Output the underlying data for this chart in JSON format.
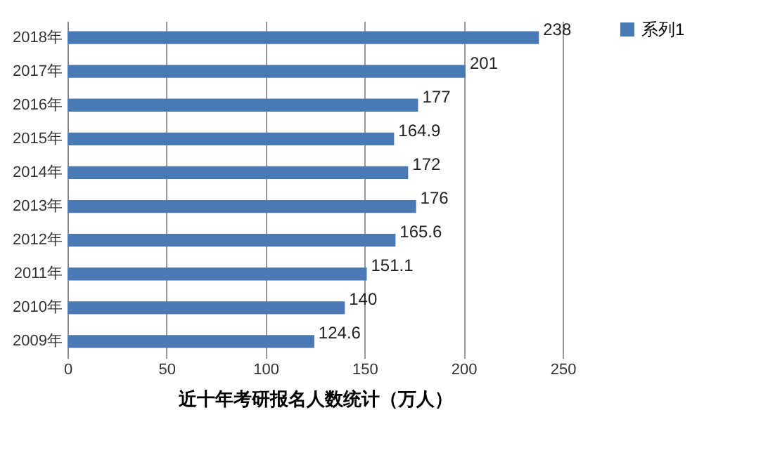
{
  "chart_data": {
    "type": "bar",
    "orientation": "horizontal",
    "xlabel": "近十年考研报名人数统计（万人）",
    "categories": [
      "2018年",
      "2017年",
      "2016年",
      "2015年",
      "2014年",
      "2013年",
      "2012年",
      "2011年",
      "2010年",
      "2009年"
    ],
    "series": [
      {
        "name": "系列1",
        "color": "#4a7ab5",
        "values": [
          238,
          201,
          177,
          164.9,
          172,
          176,
          165.6,
          151.1,
          140,
          124.6
        ]
      }
    ],
    "xlim": [
      0,
      250
    ],
    "xticks": [
      0,
      50,
      100,
      150,
      200,
      250
    ],
    "grid": "x",
    "legend": "right",
    "data_labels": true
  }
}
